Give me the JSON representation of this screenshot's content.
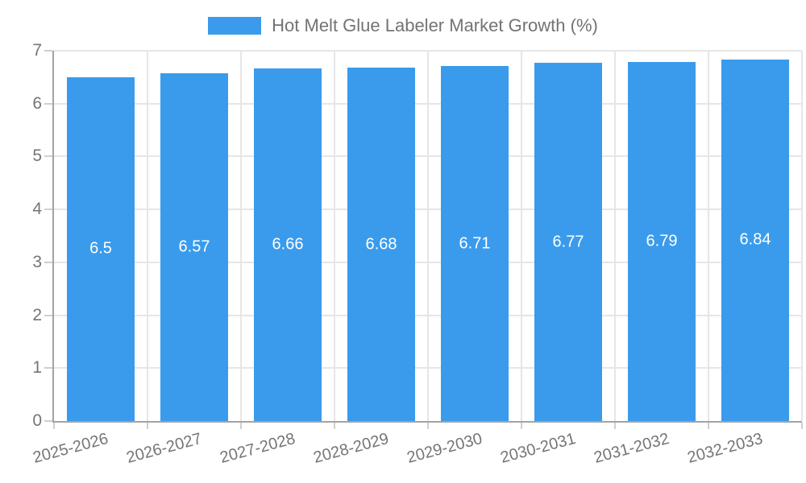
{
  "legend": {
    "label": "Hot Melt Glue Labeler Market Growth (%)"
  },
  "chart_data": {
    "type": "bar",
    "title": "Hot Melt Glue Labeler Market Growth (%)",
    "categories": [
      "2025-2026",
      "2026-2027",
      "2027-2028",
      "2028-2029",
      "2029-2030",
      "2030-2031",
      "2031-2032",
      "2032-2033"
    ],
    "values": [
      6.5,
      6.57,
      6.66,
      6.68,
      6.71,
      6.77,
      6.79,
      6.84
    ],
    "value_labels": [
      "6.5",
      "6.57",
      "6.66",
      "6.68",
      "6.71",
      "6.77",
      "6.79",
      "6.84"
    ],
    "xlabel": "",
    "ylabel": "",
    "ylim": [
      0,
      7
    ],
    "yticks": [
      0,
      1,
      2,
      3,
      4,
      5,
      6,
      7
    ],
    "grid": true,
    "legend_position": "top",
    "colors": {
      "bar": "#3a9bec",
      "value_label": "#ffffff",
      "axis_text": "#757575",
      "legend_text": "#737373",
      "axis_line": "#a3a3a3",
      "gridline": "#e6e6e6",
      "tick": "#cfcfcf",
      "background": "#ffffff"
    }
  }
}
